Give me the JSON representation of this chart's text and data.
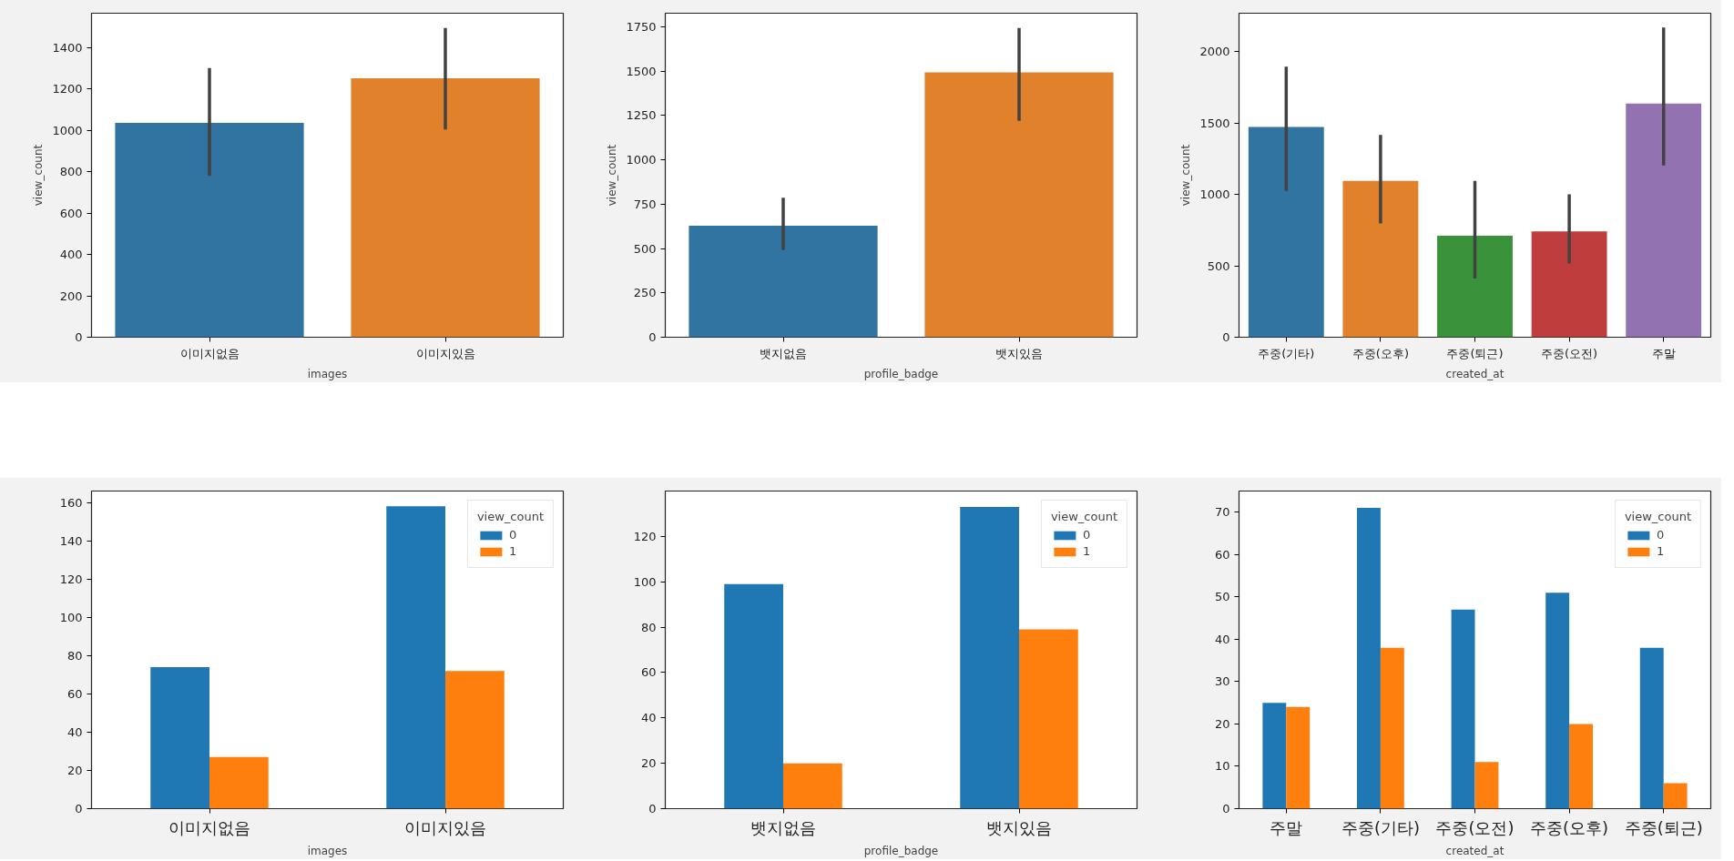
{
  "chart_data": [
    {
      "type": "bar",
      "categories": [
        "이미지없음",
        "이미지있음"
      ],
      "values": [
        1036,
        1252
      ],
      "colors": [
        "#3274a1",
        "#e1812c"
      ],
      "errors": [
        [
          780,
          1301
        ],
        [
          1004,
          1494
        ]
      ],
      "xlabel": "images",
      "ylabel": "view_count",
      "ylim": [
        0,
        1566
      ],
      "yticks": [
        0,
        200,
        400,
        600,
        800,
        1000,
        1200,
        1400
      ]
    },
    {
      "type": "bar",
      "categories": [
        "뱃지없음",
        "뱃지있음"
      ],
      "values": [
        629,
        1494
      ],
      "colors": [
        "#3274a1",
        "#e1812c"
      ],
      "errors": [
        [
          491,
          787
        ],
        [
          1220,
          1744
        ]
      ],
      "xlabel": "profile_badge",
      "ylabel": "view_count",
      "ylim": [
        0,
        1827
      ],
      "yticks": [
        0,
        250,
        500,
        750,
        1000,
        1250,
        1500,
        1750
      ]
    },
    {
      "type": "bar",
      "categories": [
        "주중(기타)",
        "주중(오후)",
        "주중(퇴근)",
        "주중(오전)",
        "주말"
      ],
      "values": [
        1473,
        1095,
        711,
        741,
        1638
      ],
      "colors": [
        "#3274a1",
        "#e1812c",
        "#3a923a",
        "#c03d3e",
        "#9372b2"
      ],
      "errors": [
        [
          1026,
          1896
        ],
        [
          798,
          1418
        ],
        [
          412,
          1095
        ],
        [
          516,
          1001
        ],
        [
          1204,
          2170
        ]
      ],
      "xlabel": "created_at",
      "ylabel": "view_count",
      "ylim": [
        0,
        2271
      ],
      "yticks": [
        0,
        500,
        1000,
        1500,
        2000
      ]
    },
    {
      "type": "bar",
      "categories": [
        "이미지없음",
        "이미지있음"
      ],
      "series": [
        {
          "name": "0",
          "color": "#1f77b4",
          "values": [
            74,
            158
          ]
        },
        {
          "name": "1",
          "color": "#ff7f0e",
          "values": [
            27,
            72
          ]
        }
      ],
      "xlabel": "images",
      "legend_title": "view_count",
      "legend": "top right",
      "ylim": [
        0,
        166
      ],
      "yticks": [
        0,
        20,
        40,
        60,
        80,
        100,
        120,
        140,
        160
      ]
    },
    {
      "type": "bar",
      "categories": [
        "뱃지없음",
        "뱃지있음"
      ],
      "series": [
        {
          "name": "0",
          "color": "#1f77b4",
          "values": [
            99,
            133
          ]
        },
        {
          "name": "1",
          "color": "#ff7f0e",
          "values": [
            20,
            79
          ]
        }
      ],
      "xlabel": "profile_badge",
      "legend_title": "view_count",
      "legend": "top right",
      "ylim": [
        0,
        140
      ],
      "yticks": [
        0,
        20,
        40,
        60,
        80,
        100,
        120
      ]
    },
    {
      "type": "bar",
      "categories": [
        "주말",
        "주중(기타)",
        "주중(오전)",
        "주중(오후)",
        "주중(퇴근)"
      ],
      "series": [
        {
          "name": "0",
          "color": "#1f77b4",
          "values": [
            25,
            71,
            47,
            51,
            38
          ]
        },
        {
          "name": "1",
          "color": "#ff7f0e",
          "values": [
            24,
            38,
            11,
            20,
            6
          ]
        }
      ],
      "xlabel": "created_at",
      "legend_title": "view_count",
      "legend": "top right",
      "ylim": [
        0,
        75
      ],
      "yticks": [
        0,
        10,
        20,
        30,
        40,
        50,
        60,
        70
      ]
    }
  ]
}
